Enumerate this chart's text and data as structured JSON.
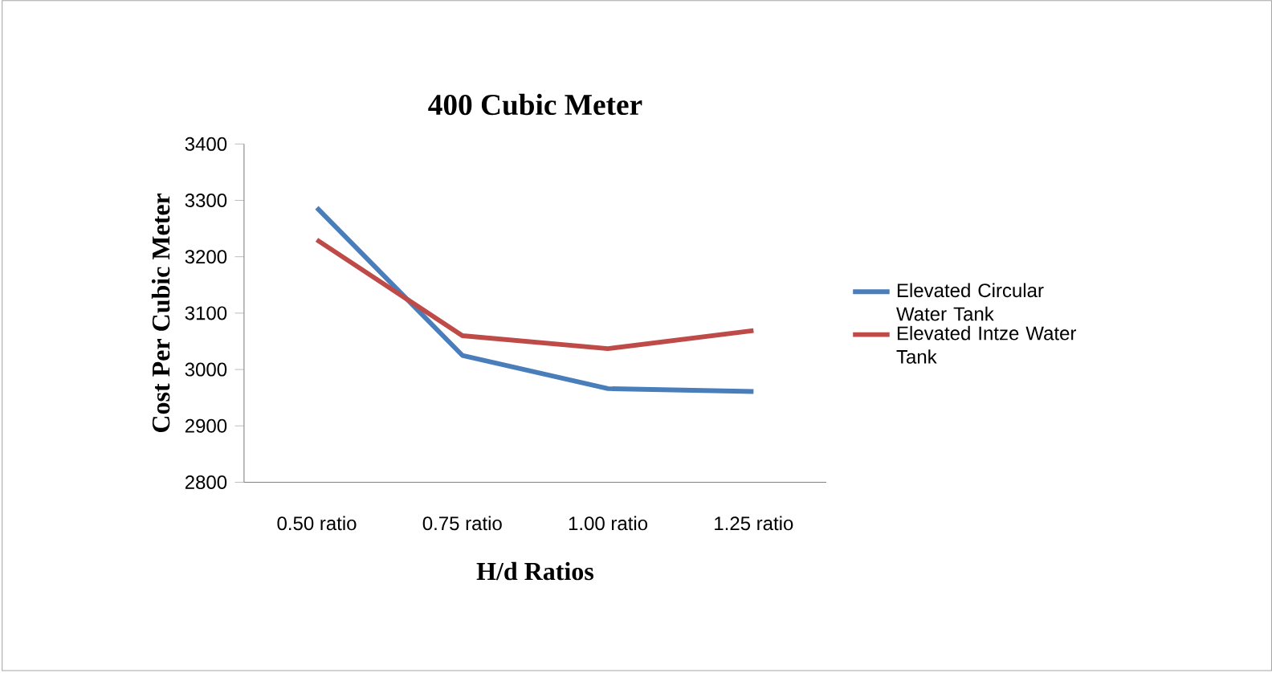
{
  "chart_data": {
    "type": "line",
    "title": "400 Cubic Meter",
    "xlabel": "H/d Ratios",
    "ylabel": "Cost Per Cubic Meter",
    "categories": [
      "0.50 ratio",
      "0.75 ratio",
      "1.00 ratio",
      "1.25 ratio"
    ],
    "series": [
      {
        "name": "Elevated Circular Water Tank",
        "color": "#4a7ebb",
        "values": [
          3287,
          3025,
          2966,
          2961
        ]
      },
      {
        "name": "Elevated Intze Water Tank",
        "color": "#be4b48",
        "values": [
          3230,
          3060,
          3037,
          3069
        ]
      }
    ],
    "ylim": [
      2800,
      3400
    ],
    "yticks": [
      2800,
      2900,
      3000,
      3100,
      3200,
      3300,
      3400
    ],
    "grid": false,
    "legend": "right",
    "marker": "none",
    "line_style": "solid"
  }
}
